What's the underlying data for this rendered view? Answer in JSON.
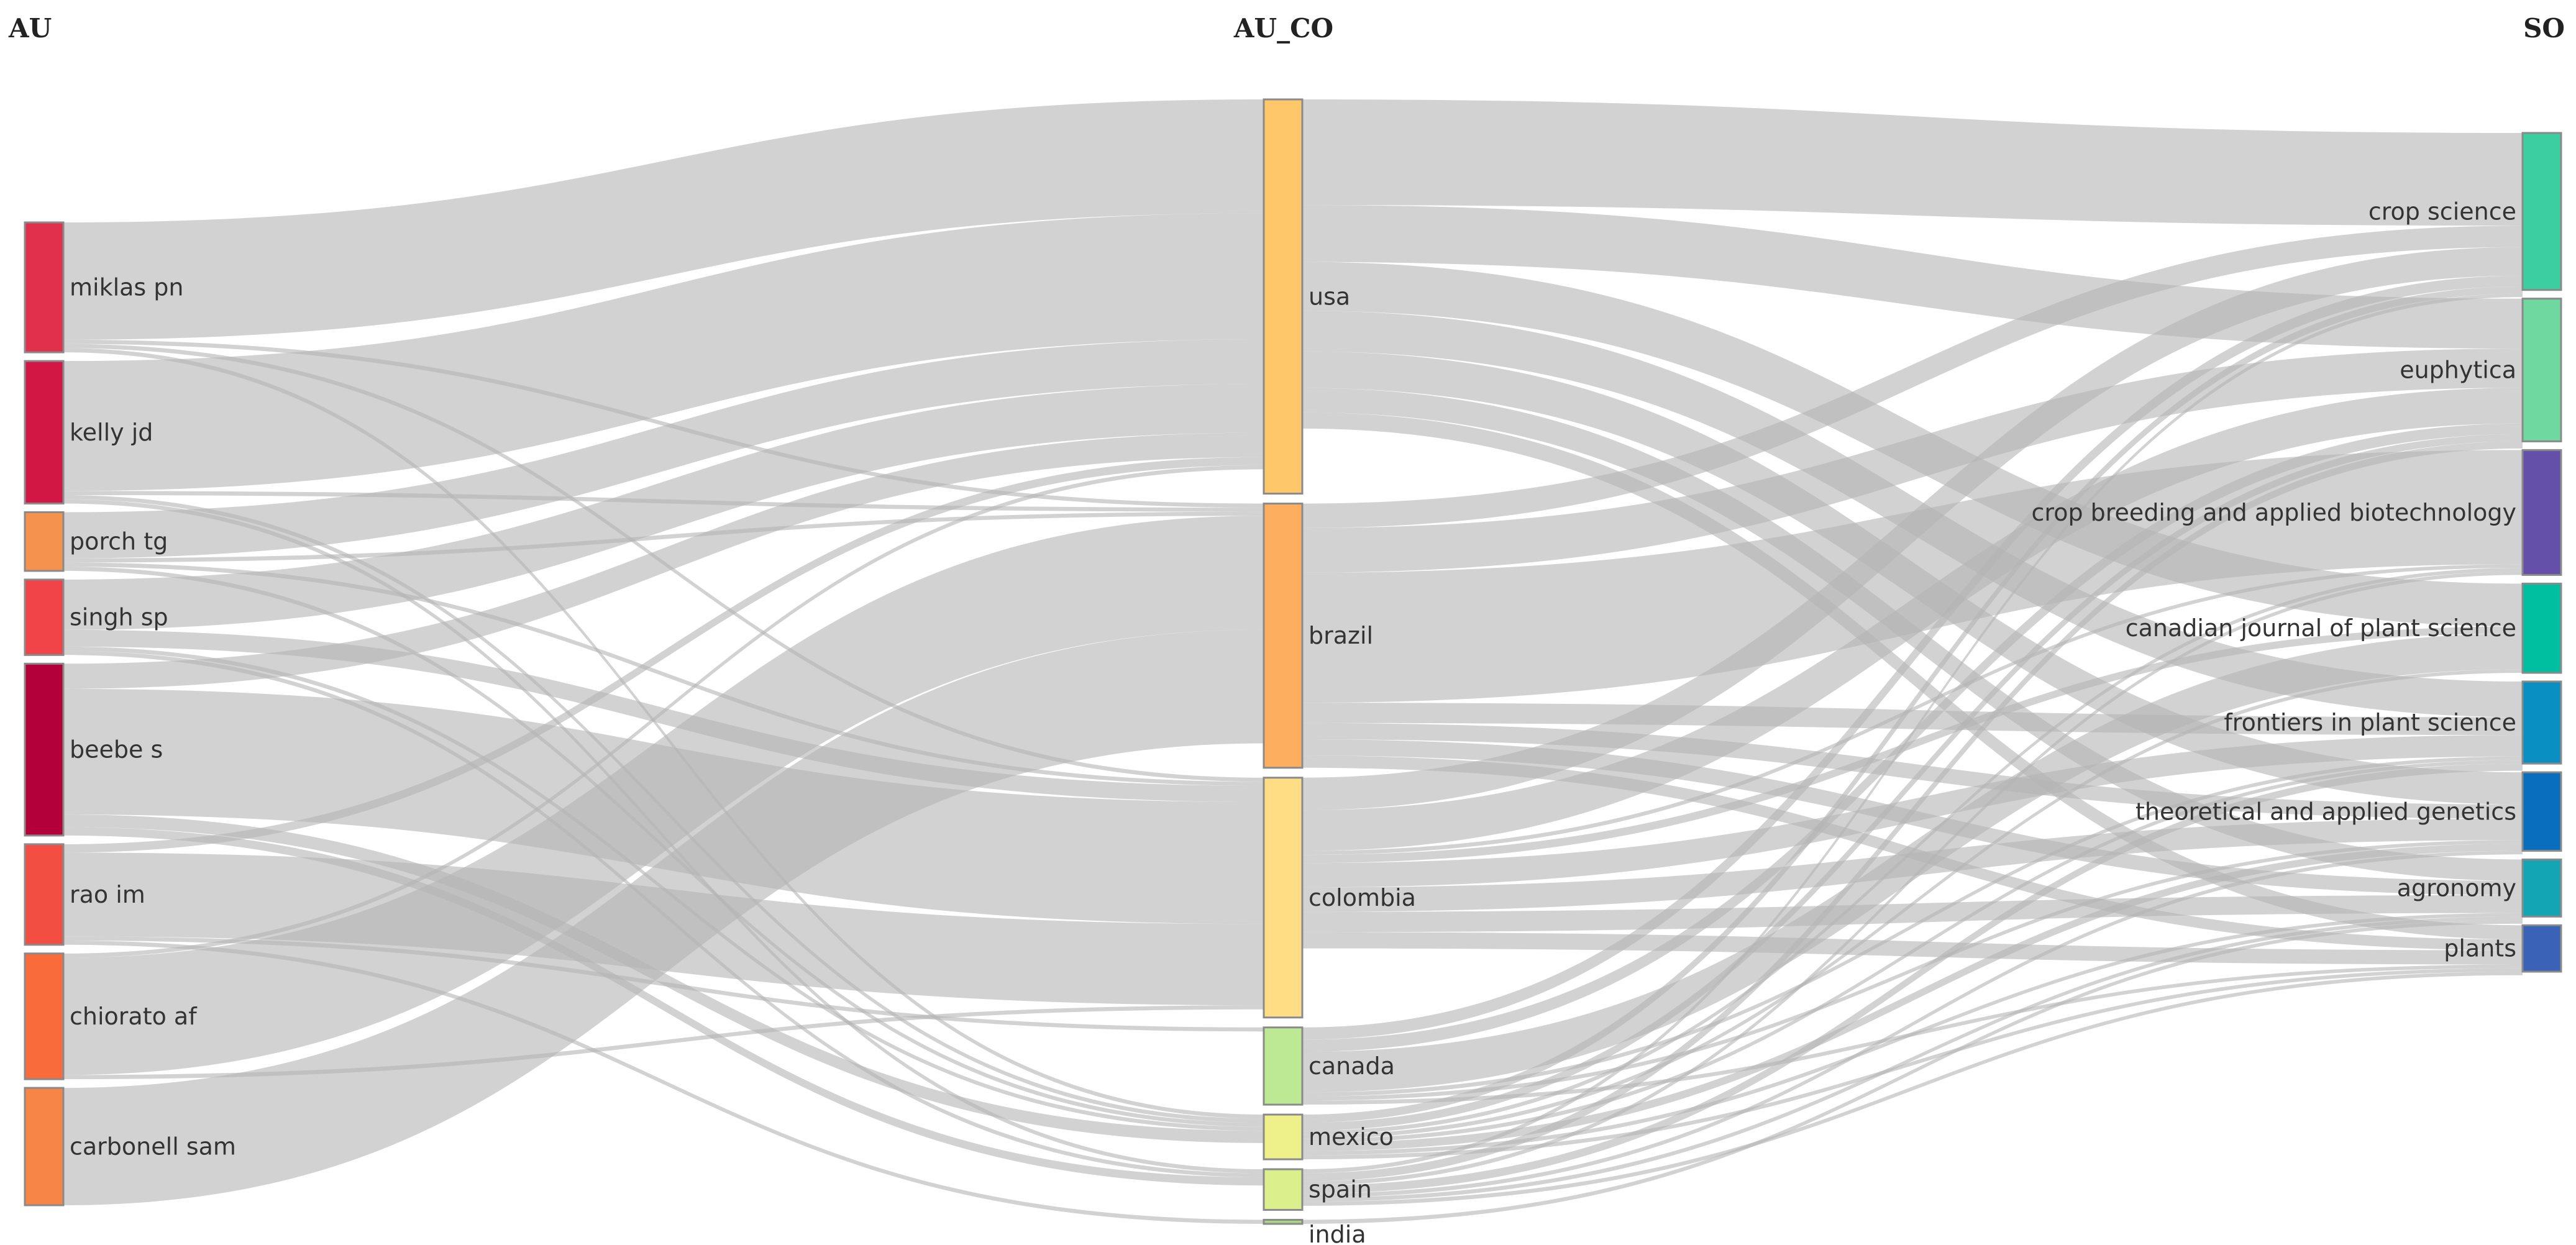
{
  "columns": {
    "au": {
      "title": "AU"
    },
    "au_co": {
      "title": "AU_CO"
    },
    "so": {
      "title": "SO"
    }
  },
  "chart_data": {
    "type": "sankey",
    "nodes": {
      "au": [
        {
          "id": "miklas",
          "label": "miklas pn",
          "color": "#e0304c",
          "value": 31
        },
        {
          "id": "kelly",
          "label": "kelly jd",
          "color": "#d21745",
          "value": 34
        },
        {
          "id": "porch",
          "label": "porch tg",
          "color": "#f5924e",
          "value": 14
        },
        {
          "id": "singh",
          "label": "singh sp",
          "color": "#f04448",
          "value": 18
        },
        {
          "id": "beebe",
          "label": "beebe s",
          "color": "#b3003a",
          "value": 41
        },
        {
          "id": "rao",
          "label": "rao im",
          "color": "#f24e42",
          "value": 24
        },
        {
          "id": "chiorato",
          "label": "chiorato af",
          "color": "#fa6b3c",
          "value": 30
        },
        {
          "id": "carbonell",
          "label": "carbonell sam",
          "color": "#f78548",
          "value": 28
        }
      ],
      "au_co": [
        {
          "id": "usa",
          "label": "usa",
          "color": "#fec76a",
          "value": 97
        },
        {
          "id": "brazil",
          "label": "brazil",
          "color": "#fdae5e",
          "value": 65
        },
        {
          "id": "colombia",
          "label": "colombia",
          "color": "#fedd85",
          "value": 59
        },
        {
          "id": "canada",
          "label": "canada",
          "color": "#bde894",
          "value": 19
        },
        {
          "id": "mexico",
          "label": "mexico",
          "color": "#eef08a",
          "value": 11
        },
        {
          "id": "spain",
          "label": "spain",
          "color": "#dbf08c",
          "value": 10
        },
        {
          "id": "india",
          "label": "india",
          "color": "#a9d67e",
          "value": 1
        }
      ],
      "so": [
        {
          "id": "cropsci",
          "label": "crop science",
          "color": "#3ccda0",
          "value": 44
        },
        {
          "id": "euphytica",
          "label": "euphytica",
          "color": "#6fd7a0",
          "value": 40
        },
        {
          "id": "cbab",
          "label": "crop breeding and applied biotechnology",
          "color": "#6450a8",
          "value": 35
        },
        {
          "id": "cjps",
          "label": "canadian journal of plant science",
          "color": "#00bfa0",
          "value": 25
        },
        {
          "id": "frontiers",
          "label": "frontiers in plant science",
          "color": "#0a8fc3",
          "value": 23
        },
        {
          "id": "tag",
          "label": "theoretical and applied genetics",
          "color": "#0a6ebe",
          "value": 22
        },
        {
          "id": "agronomy",
          "label": "agronomy",
          "color": "#14a5b5",
          "value": 16
        },
        {
          "id": "plants",
          "label": "plants",
          "color": "#3a62b6",
          "value": 13
        }
      ]
    },
    "links_left": [
      {
        "source": "miklas",
        "target": "usa",
        "value": 28
      },
      {
        "source": "miklas",
        "target": "brazil",
        "value": 1
      },
      {
        "source": "miklas",
        "target": "colombia",
        "value": 1
      },
      {
        "source": "miklas",
        "target": "mexico",
        "value": 1
      },
      {
        "source": "kelly",
        "target": "usa",
        "value": 31
      },
      {
        "source": "kelly",
        "target": "brazil",
        "value": 1
      },
      {
        "source": "kelly",
        "target": "mexico",
        "value": 1
      },
      {
        "source": "kelly",
        "target": "spain",
        "value": 1
      },
      {
        "source": "porch",
        "target": "usa",
        "value": 11
      },
      {
        "source": "porch",
        "target": "brazil",
        "value": 1
      },
      {
        "source": "porch",
        "target": "colombia",
        "value": 1
      },
      {
        "source": "porch",
        "target": "mexico",
        "value": 1
      },
      {
        "source": "singh",
        "target": "usa",
        "value": 12
      },
      {
        "source": "singh",
        "target": "colombia",
        "value": 4
      },
      {
        "source": "singh",
        "target": "mexico",
        "value": 1
      },
      {
        "source": "singh",
        "target": "spain",
        "value": 1
      },
      {
        "source": "beebe",
        "target": "usa",
        "value": 6
      },
      {
        "source": "beebe",
        "target": "colombia",
        "value": 30
      },
      {
        "source": "beebe",
        "target": "mexico",
        "value": 3
      },
      {
        "source": "beebe",
        "target": "spain",
        "value": 2
      },
      {
        "source": "rao",
        "target": "usa",
        "value": 2
      },
      {
        "source": "rao",
        "target": "colombia",
        "value": 20
      },
      {
        "source": "rao",
        "target": "canada",
        "value": 1
      },
      {
        "source": "rao",
        "target": "india",
        "value": 1
      },
      {
        "source": "chiorato",
        "target": "brazil",
        "value": 28
      },
      {
        "source": "chiorato",
        "target": "usa",
        "value": 1
      },
      {
        "source": "chiorato",
        "target": "colombia",
        "value": 1
      },
      {
        "source": "carbonell",
        "target": "brazil",
        "value": 28
      }
    ],
    "links_right": [
      {
        "source": "usa",
        "target": "cropsci",
        "value": 26
      },
      {
        "source": "usa",
        "target": "euphytica",
        "value": 14
      },
      {
        "source": "usa",
        "target": "cjps",
        "value": 12
      },
      {
        "source": "usa",
        "target": "frontiers",
        "value": 10
      },
      {
        "source": "usa",
        "target": "tag",
        "value": 9
      },
      {
        "source": "usa",
        "target": "agronomy",
        "value": 6
      },
      {
        "source": "usa",
        "target": "plants",
        "value": 4
      },
      {
        "source": "brazil",
        "target": "cbab",
        "value": 32
      },
      {
        "source": "brazil",
        "target": "euphytica",
        "value": 11
      },
      {
        "source": "brazil",
        "target": "cropsci",
        "value": 6
      },
      {
        "source": "brazil",
        "target": "frontiers",
        "value": 5
      },
      {
        "source": "brazil",
        "target": "tag",
        "value": 4
      },
      {
        "source": "brazil",
        "target": "agronomy",
        "value": 4
      },
      {
        "source": "brazil",
        "target": "plants",
        "value": 3
      },
      {
        "source": "colombia",
        "target": "euphytica",
        "value": 10
      },
      {
        "source": "colombia",
        "target": "cropsci",
        "value": 8
      },
      {
        "source": "colombia",
        "target": "frontiers",
        "value": 6
      },
      {
        "source": "colombia",
        "target": "tag",
        "value": 6
      },
      {
        "source": "colombia",
        "target": "agronomy",
        "value": 5
      },
      {
        "source": "colombia",
        "target": "plants",
        "value": 4
      },
      {
        "source": "colombia",
        "target": "cbab",
        "value": 1
      },
      {
        "source": "colombia",
        "target": "cjps",
        "value": 2
      },
      {
        "source": "canada",
        "target": "cjps",
        "value": 10
      },
      {
        "source": "canada",
        "target": "euphytica",
        "value": 3
      },
      {
        "source": "canada",
        "target": "cropsci",
        "value": 3
      },
      {
        "source": "canada",
        "target": "frontiers",
        "value": 1
      },
      {
        "source": "canada",
        "target": "tag",
        "value": 1
      },
      {
        "source": "canada",
        "target": "plants",
        "value": 1
      },
      {
        "source": "mexico",
        "target": "cropsci",
        "value": 2
      },
      {
        "source": "mexico",
        "target": "euphytica",
        "value": 2
      },
      {
        "source": "mexico",
        "target": "tag",
        "value": 2
      },
      {
        "source": "mexico",
        "target": "agronomy",
        "value": 1
      },
      {
        "source": "mexico",
        "target": "cbab",
        "value": 1
      },
      {
        "source": "mexico",
        "target": "cjps",
        "value": 1
      },
      {
        "source": "mexico",
        "target": "plants",
        "value": 1
      },
      {
        "source": "mexico",
        "target": "frontiers",
        "value": 1
      },
      {
        "source": "spain",
        "target": "frontiers",
        "value": 2
      },
      {
        "source": "spain",
        "target": "euphytica",
        "value": 2
      },
      {
        "source": "spain",
        "target": "agronomy",
        "value": 1
      },
      {
        "source": "spain",
        "target": "cbab",
        "value": 1
      },
      {
        "source": "spain",
        "target": "cropsci",
        "value": 1
      },
      {
        "source": "spain",
        "target": "tag",
        "value": 1
      },
      {
        "source": "spain",
        "target": "plants",
        "value": 1
      },
      {
        "source": "india",
        "target": "agronomy",
        "value": 1
      }
    ]
  }
}
